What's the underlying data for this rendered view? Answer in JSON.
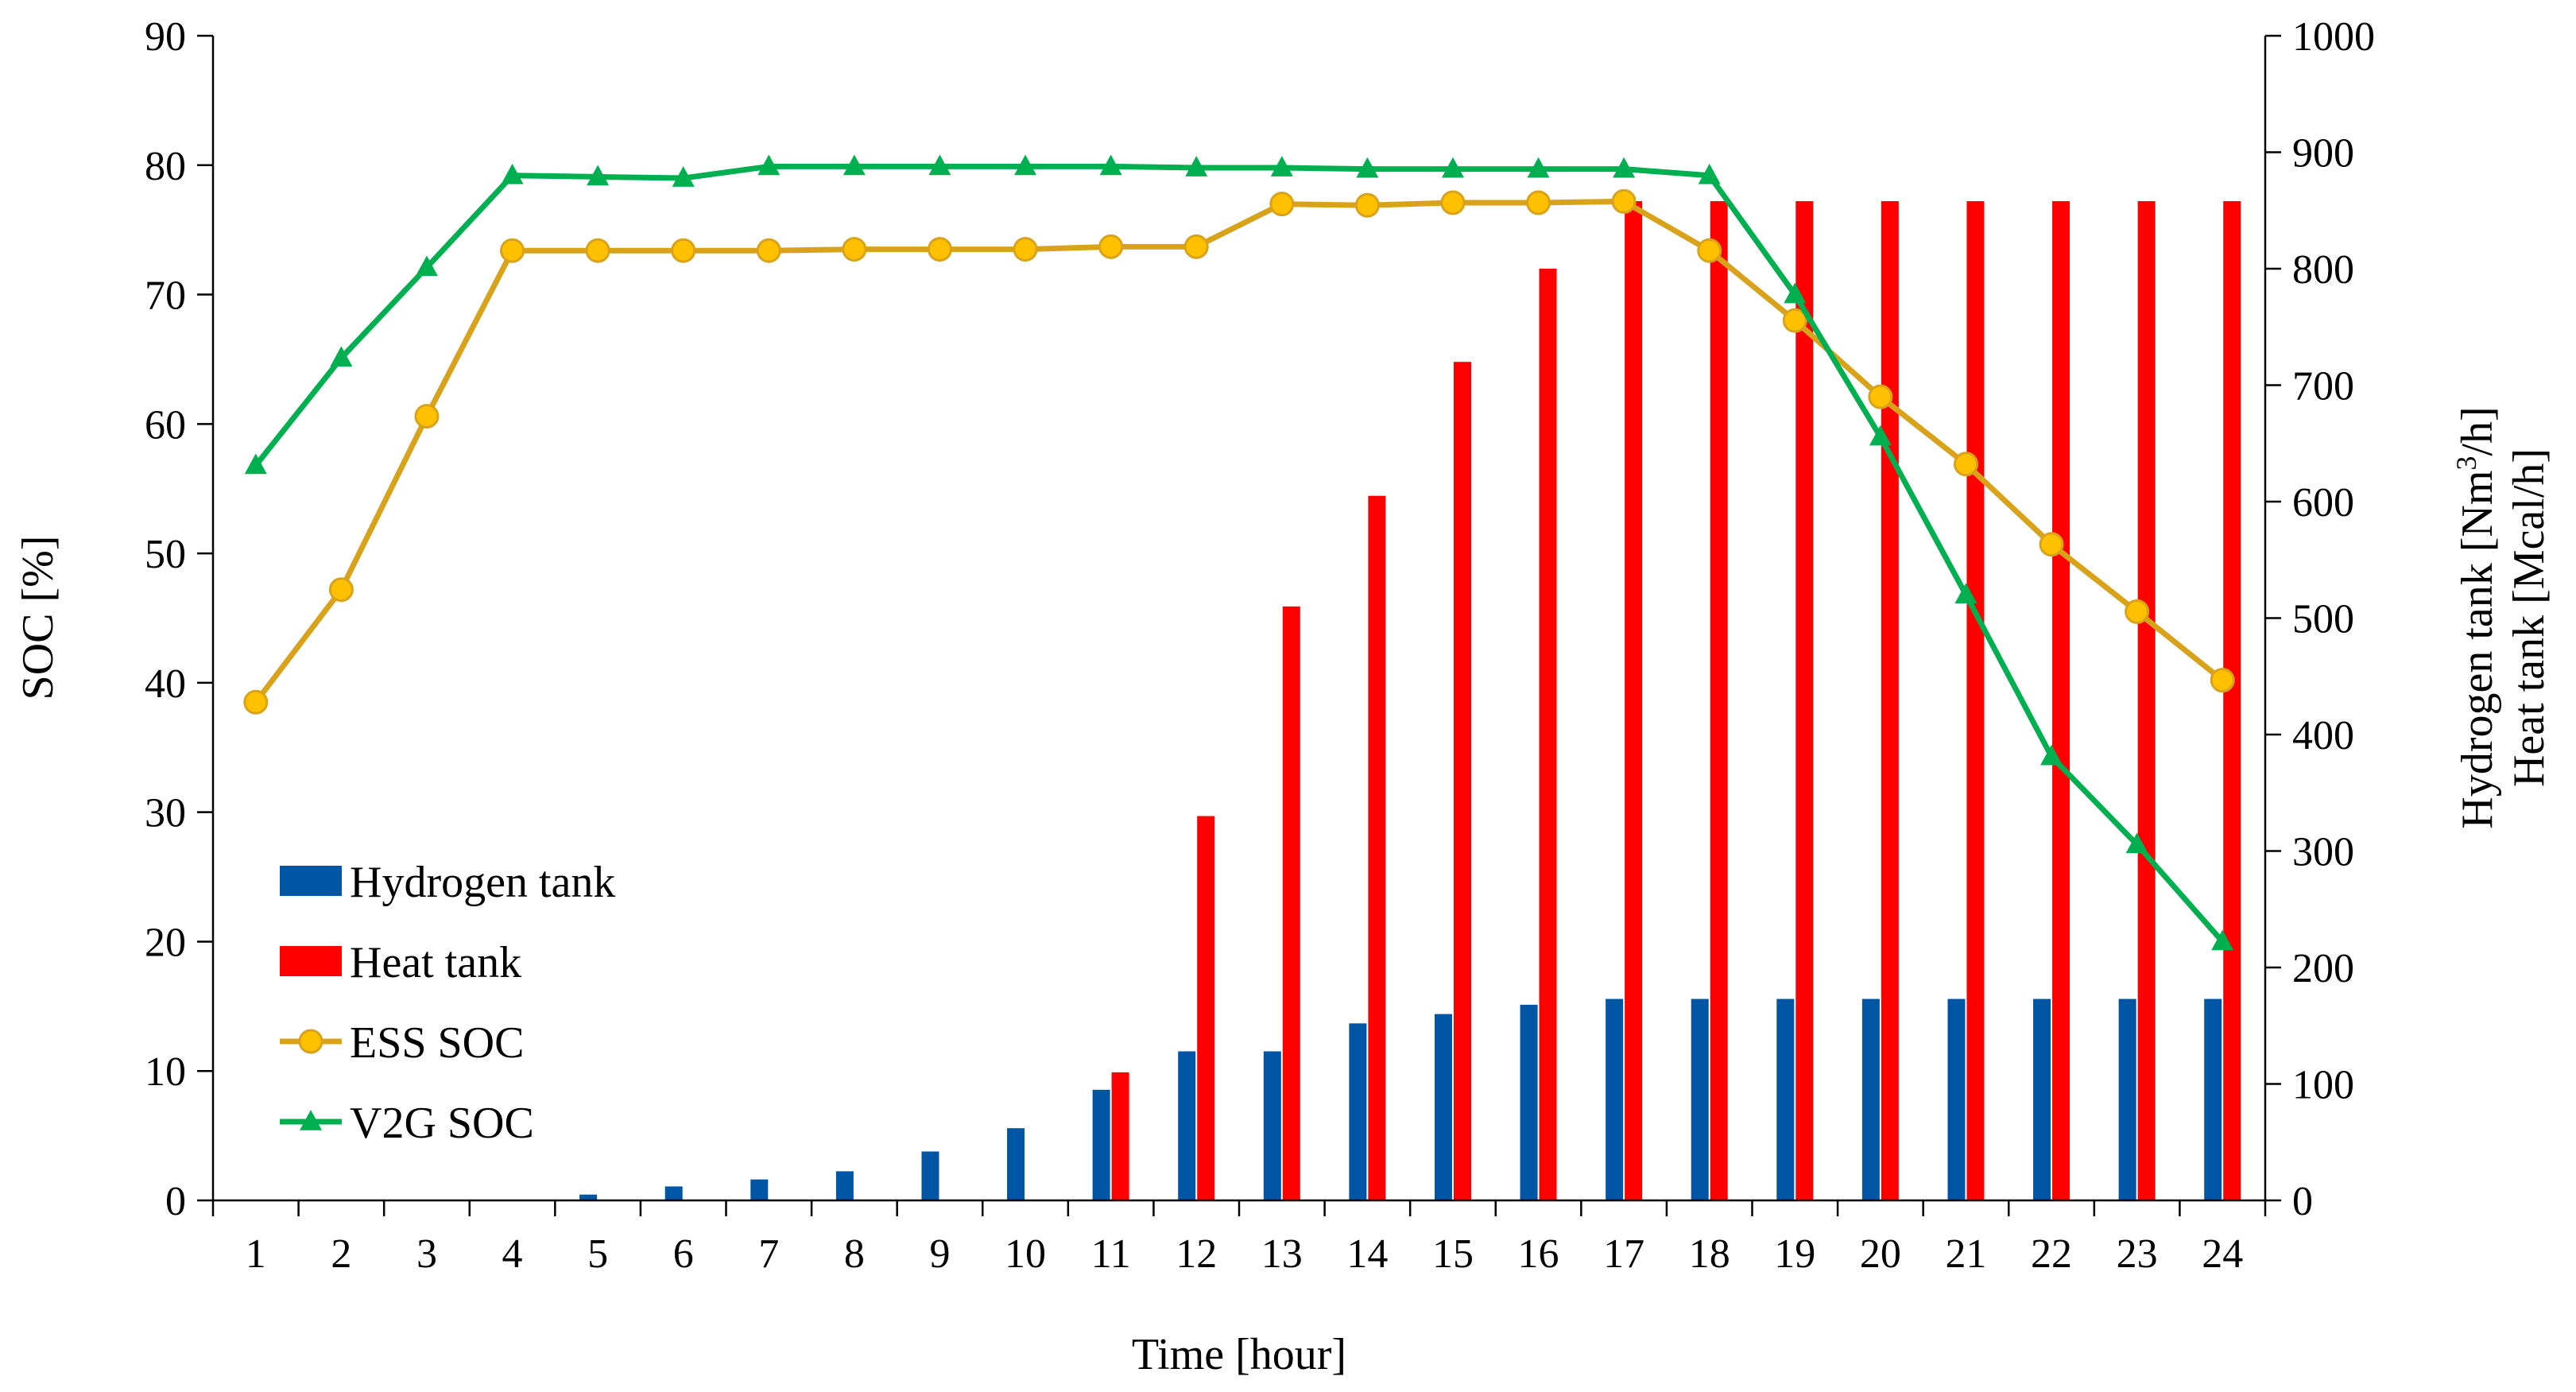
{
  "chart_data": {
    "type": "bar+line",
    "title": "",
    "xlabel": "Time [hour]",
    "ylabel_left": "SOC [%]",
    "ylabel_right_line1_base": "Hydrogen tank [Nm",
    "ylabel_right_line1_sup": "3",
    "ylabel_right_line1_end": "/h]",
    "ylabel_right_line2": "Heat tank [Mcal/h]",
    "categories": [
      "1",
      "2",
      "3",
      "4",
      "5",
      "6",
      "7",
      "8",
      "9",
      "10",
      "11",
      "12",
      "13",
      "14",
      "15",
      "16",
      "17",
      "18",
      "19",
      "20",
      "21",
      "22",
      "23",
      "24"
    ],
    "ylim_left": [
      0,
      90
    ],
    "yticks_left": [
      "0",
      "10",
      "20",
      "30",
      "40",
      "50",
      "60",
      "70",
      "80",
      "90"
    ],
    "ylim_right": [
      0,
      1000
    ],
    "yticks_right": [
      "0",
      "100",
      "200",
      "300",
      "400",
      "500",
      "600",
      "700",
      "800",
      "900",
      "1000"
    ],
    "legend_position": "lower-left",
    "series": [
      {
        "name": "Hydrogen tank",
        "kind": "bar",
        "axis": "right",
        "color": "#0055A5",
        "values": [
          0,
          0,
          0,
          0,
          5,
          12,
          18,
          25,
          42,
          62,
          95,
          128,
          128,
          152,
          160,
          168,
          173,
          173,
          173,
          173,
          173,
          173,
          173,
          173
        ]
      },
      {
        "name": "Heat tank",
        "kind": "bar",
        "axis": "right",
        "color": "#FF0000",
        "values": [
          0,
          0,
          0,
          0,
          0,
          0,
          0,
          0,
          0,
          0,
          110,
          330,
          510,
          605,
          720,
          800,
          858,
          858,
          858,
          858,
          858,
          858,
          858,
          858
        ]
      },
      {
        "name": "ESS SOC",
        "kind": "line",
        "marker": "circle",
        "axis": "left",
        "color": "#D9A21B",
        "marker_fill": "#FFC000",
        "values": [
          38.5,
          47.2,
          60.6,
          73.4,
          73.4,
          73.4,
          73.4,
          73.5,
          73.5,
          73.5,
          73.7,
          73.7,
          77.0,
          76.9,
          77.1,
          77.1,
          77.2,
          73.4,
          68.0,
          62.1,
          56.9,
          50.7,
          45.5,
          40.2
        ]
      },
      {
        "name": "V2G SOC",
        "kind": "line",
        "marker": "triangle",
        "axis": "left",
        "color": "#00B050",
        "values": [
          56.8,
          65.1,
          72.1,
          79.2,
          79.1,
          79.0,
          79.9,
          79.9,
          79.9,
          79.9,
          79.9,
          79.8,
          79.8,
          79.7,
          79.7,
          79.7,
          79.7,
          79.2,
          70.0,
          59.0,
          46.8,
          34.3,
          27.5,
          20.0
        ]
      }
    ]
  }
}
